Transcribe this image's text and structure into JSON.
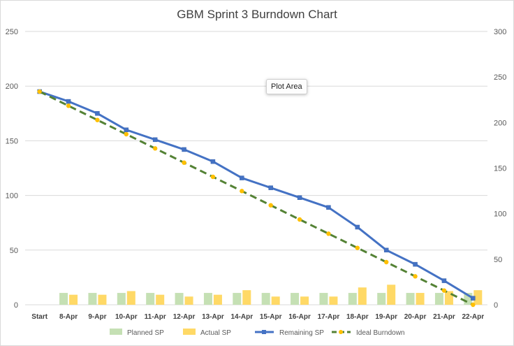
{
  "chart_data": {
    "type": "bar",
    "title": "GBM Sprint 3 Burndown Chart",
    "categories": [
      "Start",
      "8-Apr",
      "9-Apr",
      "10-Apr",
      "11-Apr",
      "12-Apr",
      "13-Apr",
      "14-Apr",
      "15-Apr",
      "16-Apr",
      "17-Apr",
      "18-Apr",
      "19-Apr",
      "20-Apr",
      "21-Apr",
      "22-Apr"
    ],
    "y_left": {
      "ylim": [
        0,
        250
      ],
      "ticks": [
        "0",
        "50",
        "100",
        "150",
        "200",
        "250"
      ]
    },
    "y_right": {
      "ylim": [
        0,
        300
      ],
      "ticks": [
        "0",
        "50",
        "100",
        "150",
        "200",
        "250",
        "300"
      ]
    },
    "grid": true,
    "legend_position": "bottom",
    "series": [
      {
        "name": "Planned SP",
        "type": "bar",
        "axis": "right",
        "color": "#c5e0b4",
        "values": [
          null,
          13,
          13,
          13,
          13,
          13,
          13,
          13,
          13,
          13,
          13,
          13,
          13,
          13,
          13,
          13
        ]
      },
      {
        "name": "Actual SP",
        "type": "bar",
        "axis": "right",
        "color": "#ffd966",
        "values": [
          null,
          11,
          11,
          15,
          11,
          9,
          11,
          16,
          9,
          9,
          9,
          19,
          22,
          13,
          15,
          16
        ]
      },
      {
        "name": "Remaining SP",
        "type": "line",
        "axis": "left",
        "color": "#4472c4",
        "values": [
          195,
          186,
          175,
          160,
          151,
          142,
          131,
          116,
          107,
          98,
          89,
          71,
          50,
          37,
          22,
          6
        ]
      },
      {
        "name": "Ideal Burndown",
        "type": "line",
        "axis": "left",
        "color": "#548235",
        "marker_color": "#ffc000",
        "dashed": true,
        "values": [
          195,
          182,
          169,
          156,
          143,
          130,
          117,
          104,
          91,
          78,
          65,
          52,
          39,
          26,
          13,
          0
        ]
      }
    ]
  },
  "tooltip": {
    "label": "Plot Area"
  }
}
